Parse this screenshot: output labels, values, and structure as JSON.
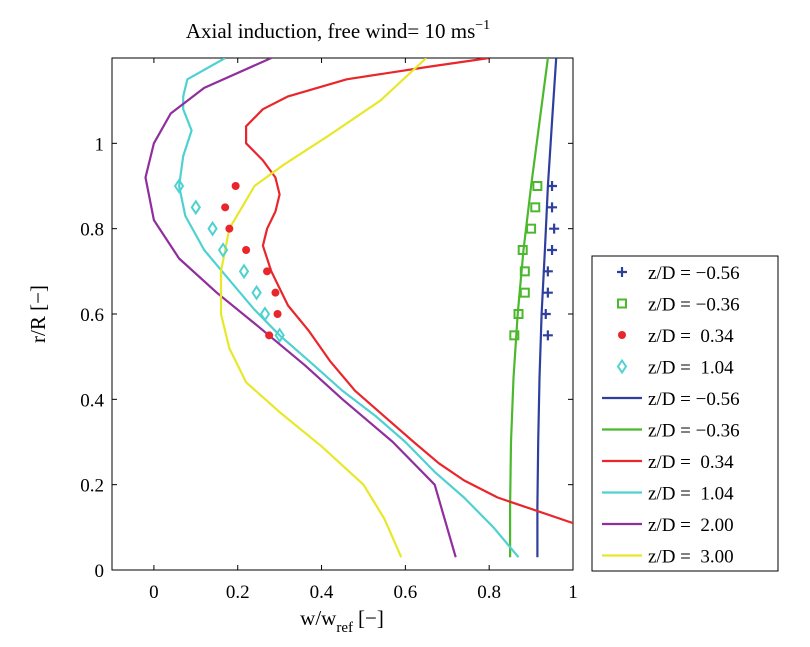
{
  "chart_data": {
    "type": "line",
    "title": "Axial induction, free wind= 10 ms",
    "title_superscript": "−1",
    "xlabel": "w/w",
    "xlabel_subscript": "ref",
    "xlabel_suffix": "[−]",
    "ylabel": "r/R [−]",
    "xlim": [
      -0.1,
      1.0
    ],
    "ylim": [
      0.0,
      1.2
    ],
    "xticks": [
      0,
      0.2,
      0.4,
      0.6,
      0.8,
      1
    ],
    "xtick_labels": [
      "0",
      "0.2",
      "0.4",
      "0.6",
      "0.8",
      "1"
    ],
    "yticks": [
      0,
      0.2,
      0.4,
      0.6,
      0.8,
      1
    ],
    "ytick_labels": [
      "0",
      "0.2",
      "0.4",
      "0.6",
      "0.8",
      "1"
    ],
    "grid": false,
    "legend_position": "outside-right",
    "series": [
      {
        "name": "z/D = −0.56",
        "kind": "markers",
        "marker": "plus",
        "color": "#2e3f9e",
        "points": [
          [
            0.95,
            0.9
          ],
          [
            0.95,
            0.85
          ],
          [
            0.955,
            0.8
          ],
          [
            0.95,
            0.75
          ],
          [
            0.94,
            0.7
          ],
          [
            0.94,
            0.65
          ],
          [
            0.935,
            0.6
          ],
          [
            0.94,
            0.55
          ]
        ]
      },
      {
        "name": "z/D = −0.36",
        "kind": "markers",
        "marker": "square",
        "color": "#4cb82e",
        "points": [
          [
            0.915,
            0.9
          ],
          [
            0.91,
            0.85
          ],
          [
            0.9,
            0.8
          ],
          [
            0.88,
            0.75
          ],
          [
            0.885,
            0.7
          ],
          [
            0.885,
            0.65
          ],
          [
            0.87,
            0.6
          ],
          [
            0.86,
            0.55
          ]
        ]
      },
      {
        "name": "z/D =  0.34",
        "kind": "markers",
        "marker": "dot",
        "color": "#e8262b",
        "points": [
          [
            0.195,
            0.9
          ],
          [
            0.17,
            0.85
          ],
          [
            0.18,
            0.8
          ],
          [
            0.22,
            0.75
          ],
          [
            0.27,
            0.7
          ],
          [
            0.29,
            0.65
          ],
          [
            0.295,
            0.6
          ],
          [
            0.275,
            0.55
          ]
        ]
      },
      {
        "name": "z/D =  1.04",
        "kind": "markers",
        "marker": "diamond",
        "color": "#4fd1d2",
        "points": [
          [
            0.06,
            0.9
          ],
          [
            0.1,
            0.85
          ],
          [
            0.14,
            0.8
          ],
          [
            0.165,
            0.75
          ],
          [
            0.215,
            0.7
          ],
          [
            0.245,
            0.65
          ],
          [
            0.265,
            0.6
          ],
          [
            0.3,
            0.55
          ]
        ]
      },
      {
        "name": "z/D = −0.56",
        "kind": "line",
        "color": "#2e3f9e",
        "points": [
          [
            0.915,
            0.03
          ],
          [
            0.915,
            0.15
          ],
          [
            0.917,
            0.3
          ],
          [
            0.92,
            0.45
          ],
          [
            0.925,
            0.6
          ],
          [
            0.933,
            0.75
          ],
          [
            0.94,
            0.9
          ],
          [
            0.95,
            1.05
          ],
          [
            0.96,
            1.2
          ]
        ]
      },
      {
        "name": "z/D = −0.36",
        "kind": "line",
        "color": "#4cb82e",
        "points": [
          [
            0.85,
            0.03
          ],
          [
            0.85,
            0.15
          ],
          [
            0.852,
            0.3
          ],
          [
            0.858,
            0.45
          ],
          [
            0.868,
            0.6
          ],
          [
            0.882,
            0.75
          ],
          [
            0.9,
            0.9
          ],
          [
            0.92,
            1.05
          ],
          [
            0.94,
            1.2
          ]
        ]
      },
      {
        "name": "z/D =  0.34",
        "kind": "line",
        "color": "#e8262b",
        "points": [
          [
            1.0,
            0.11
          ],
          [
            0.82,
            0.17
          ],
          [
            0.74,
            0.21
          ],
          [
            0.68,
            0.25
          ],
          [
            0.62,
            0.3
          ],
          [
            0.55,
            0.36
          ],
          [
            0.48,
            0.42
          ],
          [
            0.42,
            0.49
          ],
          [
            0.37,
            0.56
          ],
          [
            0.32,
            0.62
          ],
          [
            0.28,
            0.7
          ],
          [
            0.26,
            0.76
          ],
          [
            0.27,
            0.8
          ],
          [
            0.29,
            0.84
          ],
          [
            0.3,
            0.88
          ],
          [
            0.29,
            0.92
          ],
          [
            0.26,
            0.96
          ],
          [
            0.22,
            1.0
          ],
          [
            0.22,
            1.04
          ],
          [
            0.26,
            1.08
          ],
          [
            0.32,
            1.11
          ],
          [
            0.46,
            1.15
          ],
          [
            0.66,
            1.18
          ],
          [
            0.8,
            1.2
          ]
        ]
      },
      {
        "name": "z/D =  1.04",
        "kind": "line",
        "color": "#4fd1d2",
        "points": [
          [
            0.87,
            0.03
          ],
          [
            0.81,
            0.1
          ],
          [
            0.74,
            0.17
          ],
          [
            0.67,
            0.23
          ],
          [
            0.6,
            0.3
          ],
          [
            0.53,
            0.36
          ],
          [
            0.45,
            0.42
          ],
          [
            0.37,
            0.49
          ],
          [
            0.3,
            0.55
          ],
          [
            0.24,
            0.61
          ],
          [
            0.18,
            0.68
          ],
          [
            0.12,
            0.75
          ],
          [
            0.075,
            0.83
          ],
          [
            0.06,
            0.9
          ],
          [
            0.07,
            0.97
          ],
          [
            0.09,
            1.03
          ],
          [
            0.07,
            1.08
          ],
          [
            0.07,
            1.11
          ],
          [
            0.08,
            1.15
          ],
          [
            0.17,
            1.2
          ]
        ]
      },
      {
        "name": "z/D =  2.00",
        "kind": "line",
        "color": "#8f2e9c",
        "points": [
          [
            0.72,
            0.03
          ],
          [
            0.67,
            0.2
          ],
          [
            0.57,
            0.3
          ],
          [
            0.45,
            0.4
          ],
          [
            0.36,
            0.48
          ],
          [
            0.25,
            0.57
          ],
          [
            0.15,
            0.65
          ],
          [
            0.06,
            0.73
          ],
          [
            0.0,
            0.82
          ],
          [
            -0.02,
            0.92
          ],
          [
            0.0,
            1.0
          ],
          [
            0.04,
            1.07
          ],
          [
            0.12,
            1.13
          ],
          [
            0.28,
            1.2
          ]
        ]
      },
      {
        "name": "z/D =  3.00",
        "kind": "line",
        "color": "#e8e82a",
        "points": [
          [
            0.59,
            0.03
          ],
          [
            0.55,
            0.12
          ],
          [
            0.5,
            0.2
          ],
          [
            0.4,
            0.29
          ],
          [
            0.3,
            0.37
          ],
          [
            0.22,
            0.44
          ],
          [
            0.18,
            0.52
          ],
          [
            0.16,
            0.6
          ],
          [
            0.16,
            0.7
          ],
          [
            0.18,
            0.8
          ],
          [
            0.24,
            0.9
          ],
          [
            0.31,
            0.95
          ],
          [
            0.42,
            1.02
          ],
          [
            0.54,
            1.1
          ],
          [
            0.65,
            1.2
          ]
        ]
      }
    ],
    "legend": [
      {
        "label": "z/D = −0.56",
        "color": "#2e3f9e",
        "marker": "plus"
      },
      {
        "label": "z/D = −0.36",
        "color": "#4cb82e",
        "marker": "square"
      },
      {
        "label": "z/D =  0.34",
        "color": "#e8262b",
        "marker": "dot"
      },
      {
        "label": "z/D =  1.04",
        "color": "#4fd1d2",
        "marker": "diamond"
      },
      {
        "label": "z/D = −0.56",
        "color": "#2e3f9e",
        "marker": "line"
      },
      {
        "label": "z/D = −0.36",
        "color": "#4cb82e",
        "marker": "line"
      },
      {
        "label": "z/D =  0.34",
        "color": "#e8262b",
        "marker": "line"
      },
      {
        "label": "z/D =  1.04",
        "color": "#4fd1d2",
        "marker": "line"
      },
      {
        "label": "z/D =  2.00",
        "color": "#8f2e9c",
        "marker": "line"
      },
      {
        "label": "z/D =  3.00",
        "color": "#e8e82a",
        "marker": "line"
      }
    ]
  }
}
